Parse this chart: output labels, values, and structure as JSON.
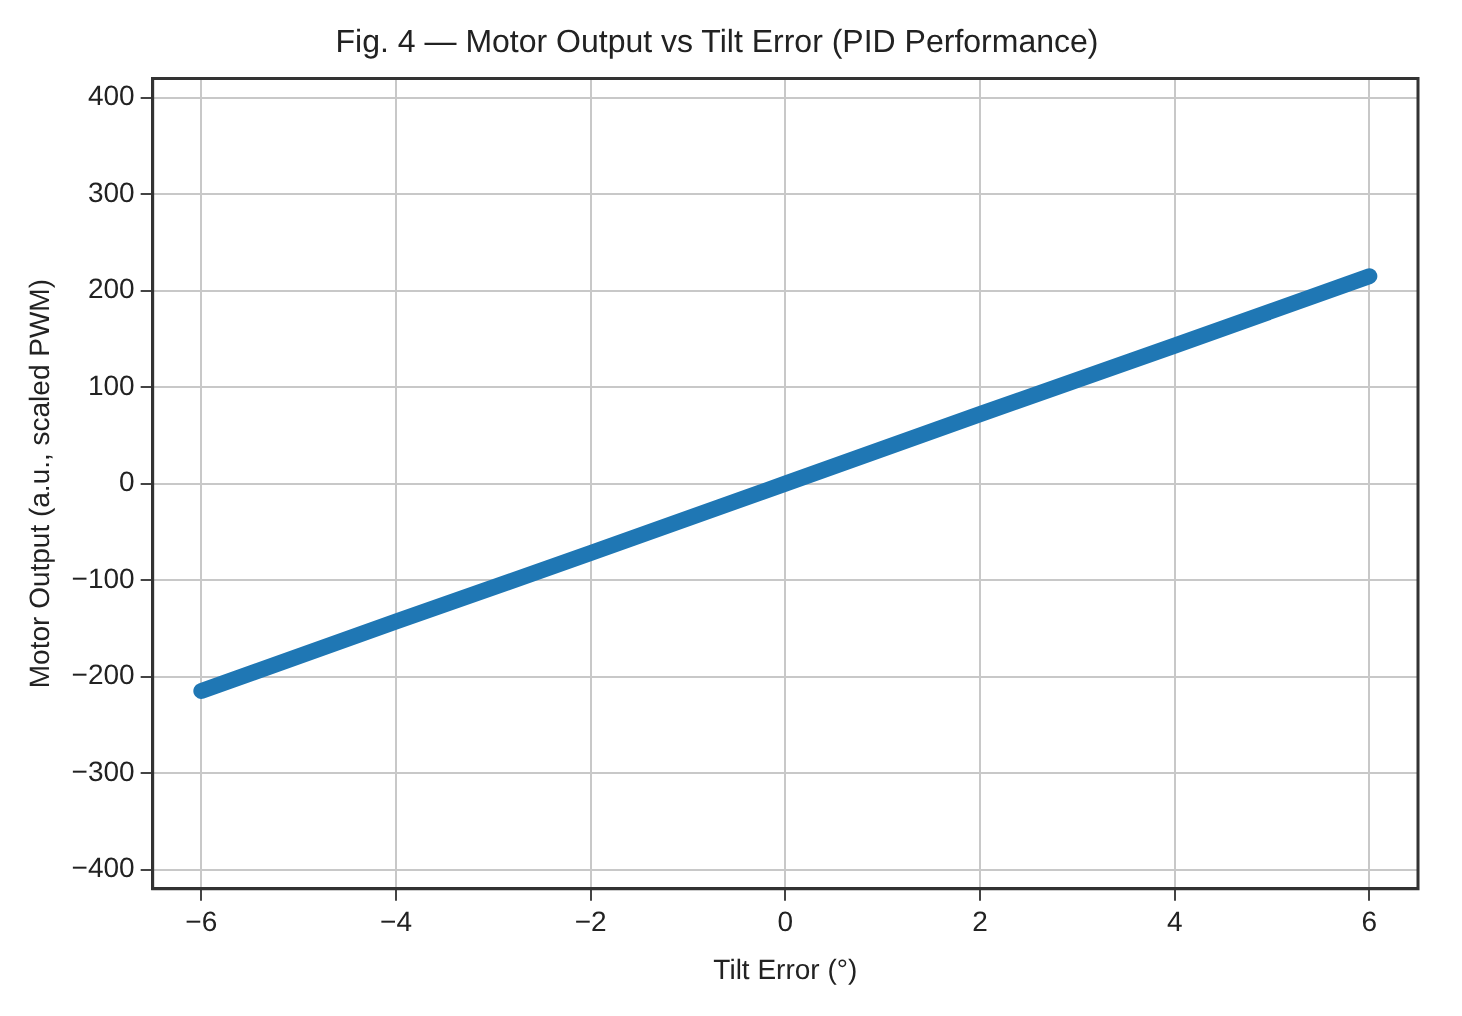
{
  "chart_data": {
    "type": "line",
    "title": "Fig. 4 — Motor Output vs Tilt Error (PID Performance)",
    "xlabel": "Tilt Error (°)",
    "ylabel": "Motor Output (a.u., scaled PWM)",
    "x": [
      -6,
      -4,
      -2,
      0,
      2,
      4,
      6
    ],
    "series": [
      {
        "color": "#1f77b4",
        "values": [
          -215,
          -143,
          -72,
          0,
          72,
          143,
          215
        ]
      }
    ],
    "xlim": [
      -6.5,
      6.5
    ],
    "xticks": [
      {
        "value": -6,
        "label": "−6"
      },
      {
        "value": -4,
        "label": "−4"
      },
      {
        "value": -2,
        "label": "−2"
      },
      0,
      2,
      4,
      6
    ],
    "ylim": [
      -420,
      420
    ],
    "yticks": [
      {
        "value": -400,
        "label": "−400"
      },
      {
        "value": -300,
        "label": "−300"
      },
      {
        "value": -200,
        "label": "−200"
      },
      {
        "value": -100,
        "label": "−100"
      },
      0,
      100,
      200,
      300,
      400
    ],
    "grid": true,
    "legend": false,
    "marker": "none",
    "line_style": "solid"
  }
}
